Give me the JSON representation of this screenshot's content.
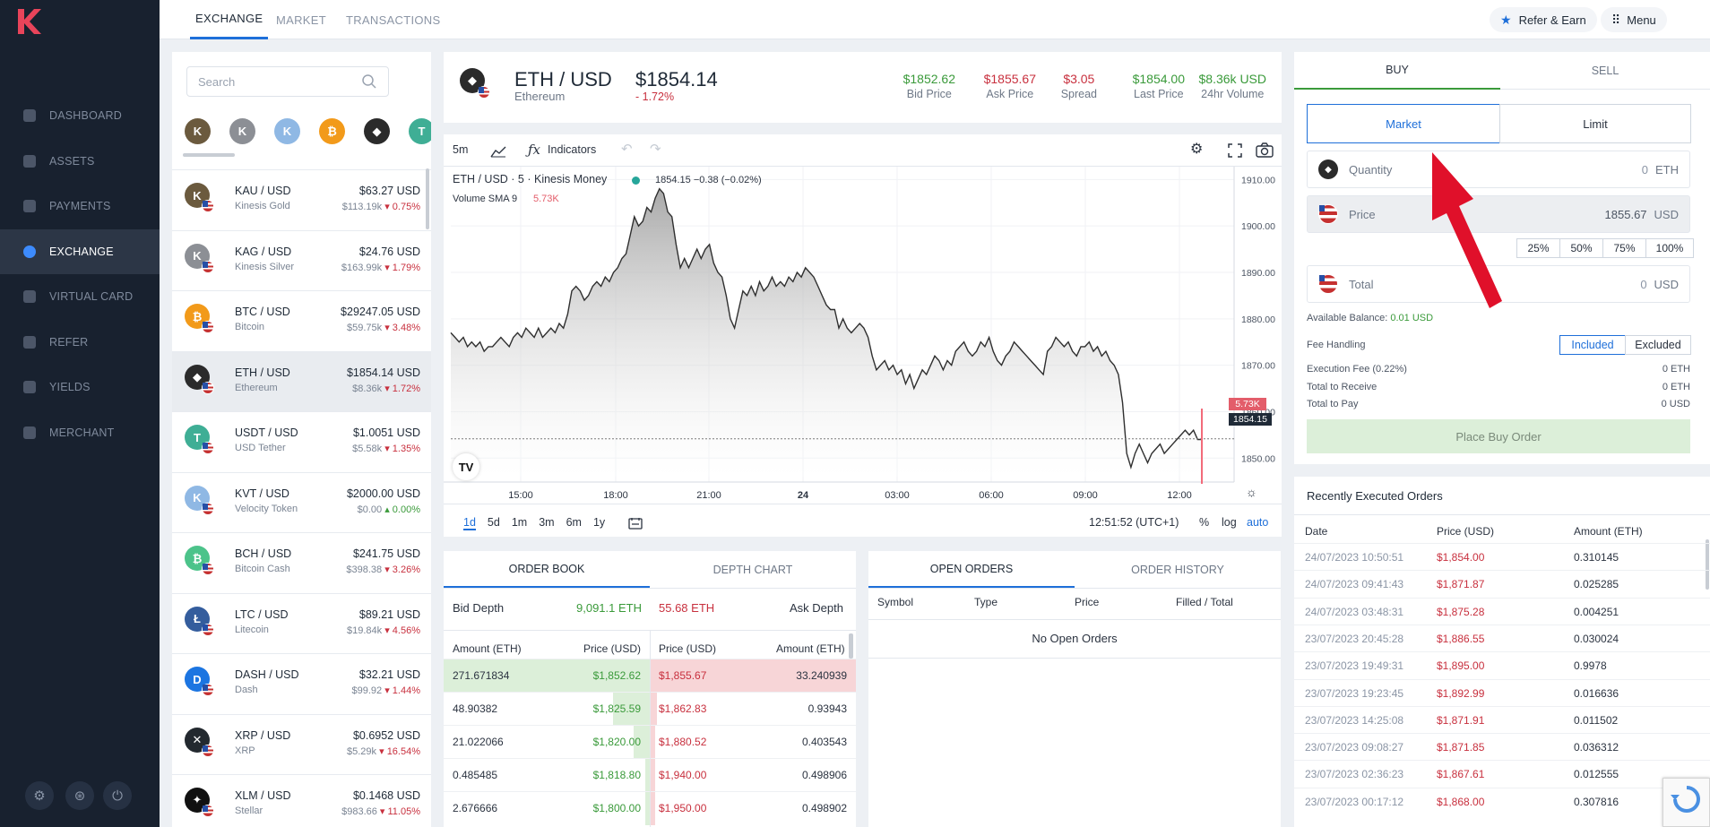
{
  "sidebar": {
    "logo_letter": "K",
    "items": [
      {
        "label": "DASHBOARD",
        "active": false
      },
      {
        "label": "ASSETS",
        "active": false
      },
      {
        "label": "PAYMENTS",
        "active": false
      },
      {
        "label": "EXCHANGE",
        "active": true
      },
      {
        "label": "VIRTUAL CARD",
        "active": false
      },
      {
        "label": "REFER",
        "active": false
      },
      {
        "label": "YIELDS",
        "active": false
      },
      {
        "label": "MERCHANT",
        "active": false
      }
    ],
    "bottom_icons": [
      "gear-icon",
      "support-icon",
      "power-icon"
    ]
  },
  "topbar": {
    "tabs": [
      "EXCHANGE",
      "MARKET",
      "TRANSACTIONS"
    ],
    "refer_label": "Refer & Earn",
    "menu_label": "Menu"
  },
  "markets": {
    "search_placeholder": "Search",
    "favorites": [
      "KAU",
      "KAG",
      "KVT",
      "BTC",
      "ETH",
      "USDT"
    ],
    "rows": [
      {
        "pair": "KAU / USD",
        "name": "Kinesis Gold",
        "price": "$63.27 USD",
        "vol": "$113.19k",
        "change": "0.75%",
        "dir": "down",
        "color": "#6b5a3e",
        "letter": "K"
      },
      {
        "pair": "KAG / USD",
        "name": "Kinesis Silver",
        "price": "$24.76 USD",
        "vol": "$163.99k",
        "change": "1.79%",
        "dir": "down",
        "color": "#8c8f95",
        "letter": "K"
      },
      {
        "pair": "BTC / USD",
        "name": "Bitcoin",
        "price": "$29247.05 USD",
        "vol": "$59.75k",
        "change": "3.48%",
        "dir": "down",
        "color": "#f29a1a",
        "letter": "₿"
      },
      {
        "pair": "ETH / USD",
        "name": "Ethereum",
        "price": "$1854.14 USD",
        "vol": "$8.36k",
        "change": "1.72%",
        "dir": "down",
        "color": "#2b2b2b",
        "letter": "◆"
      },
      {
        "pair": "USDT / USD",
        "name": "USD Tether",
        "price": "$1.0051 USD",
        "vol": "$5.58k",
        "change": "1.35%",
        "dir": "down",
        "color": "#3fae95",
        "letter": "T"
      },
      {
        "pair": "KVT / USD",
        "name": "Velocity Token",
        "price": "$2000.00 USD",
        "vol": "$0.00",
        "change": "0.00%",
        "dir": "up",
        "color": "#8fb8e4",
        "letter": "K"
      },
      {
        "pair": "BCH / USD",
        "name": "Bitcoin Cash",
        "price": "$241.75 USD",
        "vol": "$398.38",
        "change": "3.26%",
        "dir": "down",
        "color": "#4cc38a",
        "letter": "₿"
      },
      {
        "pair": "LTC / USD",
        "name": "Litecoin",
        "price": "$89.21 USD",
        "vol": "$19.84k",
        "change": "4.56%",
        "dir": "down",
        "color": "#345d9d",
        "letter": "Ł"
      },
      {
        "pair": "DASH / USD",
        "name": "Dash",
        "price": "$32.21 USD",
        "vol": "$99.92",
        "change": "1.44%",
        "dir": "down",
        "color": "#1c75e1",
        "letter": "D"
      },
      {
        "pair": "XRP / USD",
        "name": "XRP",
        "price": "$0.6952 USD",
        "vol": "$5.29k",
        "change": "16.54%",
        "dir": "down",
        "color": "#23292f",
        "letter": "✕"
      },
      {
        "pair": "XLM / USD",
        "name": "Stellar",
        "price": "$0.1468 USD",
        "vol": "$983.66",
        "change": "11.05%",
        "dir": "down",
        "color": "#111111",
        "letter": "✦"
      }
    ]
  },
  "ticker": {
    "pair": "ETH / USD",
    "name": "Ethereum",
    "price": "$1854.14",
    "change": "- 1.72%",
    "stats": [
      {
        "value": "$1852.62",
        "label": "Bid Price",
        "color": "#3a9a3a"
      },
      {
        "value": "$1855.67",
        "label": "Ask Price",
        "color": "#c8303e"
      },
      {
        "value": "$3.05",
        "label": "Spread",
        "color": "#c8303e"
      },
      {
        "value": "$1854.00",
        "label": "Last Price",
        "color": "#3a9a3a"
      },
      {
        "value": "$8.36k USD",
        "label": "24hr Volume",
        "color": "#3a9a3a"
      }
    ]
  },
  "chart": {
    "interval": "5m",
    "indicators_label": "Indicators",
    "legend_title": "ETH / USD · 5 · Kinesis Money",
    "legend_values": "1854.15 −0.38 (−0.02%)",
    "volume_label": "Volume SMA 9",
    "volume_value": "5.73K",
    "y_ticks": [
      "1910.00",
      "1900.00",
      "1890.00",
      "1880.00",
      "1870.00",
      "1860.00",
      "1850.00"
    ],
    "x_ticks": [
      "15:00",
      "18:00",
      "21:00",
      "24",
      "03:00",
      "06:00",
      "09:00",
      "12:00"
    ],
    "badge_volume": "5.73K",
    "badge_price": "1854.15",
    "ranges": [
      "1d",
      "5d",
      "1m",
      "3m",
      "6m",
      "1y"
    ],
    "time": "12:51:52 (UTC+1)",
    "opts": [
      "%",
      "log",
      "auto"
    ],
    "chart_data": {
      "type": "area",
      "ylim": [
        1846,
        1912
      ],
      "values": [
        1877,
        1876,
        1875,
        1876,
        1874,
        1875,
        1874,
        1875,
        1873,
        1874,
        1874,
        1875,
        1876,
        1875,
        1874,
        1876,
        1877,
        1876,
        1878,
        1877,
        1876,
        1878,
        1876,
        1877,
        1878,
        1877,
        1879,
        1878,
        1881,
        1886,
        1887,
        1886,
        1884,
        1885,
        1887,
        1888,
        1887,
        1889,
        1888,
        1890,
        1891,
        1893,
        1894,
        1898,
        1902,
        1900,
        1901,
        1904,
        1903,
        1906,
        1908,
        1907,
        1903,
        1902,
        1896,
        1891,
        1893,
        1891,
        1893,
        1895,
        1893,
        1895,
        1896,
        1892,
        1890,
        1889,
        1885,
        1880,
        1878,
        1882,
        1886,
        1885,
        1887,
        1885,
        1888,
        1886,
        1887,
        1889,
        1887,
        1888,
        1887,
        1889,
        1888,
        1890,
        1889,
        1891,
        1890,
        1889,
        1887,
        1885,
        1883,
        1882,
        1882,
        1878,
        1880,
        1878,
        1877,
        1878,
        1879,
        1878,
        1876,
        1872,
        1869,
        1870,
        1871,
        1869,
        1870,
        1868,
        1869,
        1866,
        1868,
        1865,
        1867,
        1869,
        1868,
        1870,
        1872,
        1871,
        1869,
        1871,
        1870,
        1873,
        1874,
        1875,
        1873,
        1872,
        1873,
        1875,
        1874,
        1876,
        1873,
        1871,
        1870,
        1872,
        1873,
        1875,
        1874,
        1873,
        1872,
        1871,
        1870,
        1869,
        1868,
        1873,
        1874,
        1876,
        1875,
        1874,
        1875,
        1873,
        1872,
        1874,
        1874,
        1875,
        1873,
        1874,
        1872,
        1873,
        1871,
        1870,
        1868,
        1862,
        1851,
        1848,
        1851,
        1853,
        1851,
        1849,
        1851,
        1852,
        1853,
        1851,
        1852,
        1853,
        1854,
        1855,
        1856,
        1855,
        1856,
        1854,
        1854
      ]
    }
  },
  "orderbook": {
    "tabs": [
      "ORDER BOOK",
      "DEPTH CHART"
    ],
    "bid_depth_label": "Bid Depth",
    "bid_depth": "9,091.1 ETH",
    "ask_depth": "55.68 ETH",
    "ask_depth_label": "Ask Depth",
    "cols": [
      "Amount (ETH)",
      "Price (USD)",
      "Price (USD)",
      "Amount (ETH)"
    ],
    "bids": [
      {
        "amount": "271.671834",
        "price": "$1,852.62",
        "depth": 1.0
      },
      {
        "amount": "48.90382",
        "price": "$1,825.59",
        "depth": 0.18
      },
      {
        "amount": "21.022066",
        "price": "$1,820.00",
        "depth": 0.08
      },
      {
        "amount": "0.485485",
        "price": "$1,818.80",
        "depth": 0.02
      },
      {
        "amount": "2.676666",
        "price": "$1,800.00",
        "depth": 0.02
      }
    ],
    "asks": [
      {
        "price": "$1,855.67",
        "amount": "33.240939",
        "depth": 1.0
      },
      {
        "price": "$1,862.83",
        "amount": "0.93943",
        "depth": 0.03
      },
      {
        "price": "$1,880.52",
        "amount": "0.403543",
        "depth": 0.02
      },
      {
        "price": "$1,940.00",
        "amount": "0.498906",
        "depth": 0.02
      },
      {
        "price": "$1,950.00",
        "amount": "0.498902",
        "depth": 0.02
      }
    ]
  },
  "openorders": {
    "tabs": [
      "OPEN ORDERS",
      "ORDER HISTORY"
    ],
    "cols": [
      "Symbol",
      "Type",
      "Price",
      "Filled / Total"
    ],
    "empty": "No Open Orders"
  },
  "trade": {
    "tabs": [
      "BUY",
      "SELL"
    ],
    "types": [
      "Market",
      "Limit"
    ],
    "quantity_label": "Quantity",
    "quantity_value": "0",
    "quantity_unit": "ETH",
    "price_label": "Price",
    "price_value": "1855.67",
    "price_unit": "USD",
    "pcts": [
      "25%",
      "50%",
      "75%",
      "100%"
    ],
    "total_label": "Total",
    "total_value": "0",
    "total_unit": "USD",
    "balance_label": "Available Balance:",
    "balance_value": "0.01 USD",
    "fee_label": "Fee Handling",
    "fee_opts": [
      "Included",
      "Excluded"
    ],
    "rows": [
      {
        "label": "Execution Fee (0.22%)",
        "value": "0 ETH"
      },
      {
        "label": "Total to Receive",
        "value": "0 ETH"
      },
      {
        "label": "Total to Pay",
        "value": "0 USD"
      }
    ],
    "place_label": "Place Buy Order"
  },
  "recent": {
    "title": "Recently Executed Orders",
    "cols": [
      "Date",
      "Price (USD)",
      "Amount (ETH)"
    ],
    "rows": [
      {
        "date": "24/07/2023 10:50:51",
        "price": "$1,854.00",
        "amount": "0.310145"
      },
      {
        "date": "24/07/2023 09:41:43",
        "price": "$1,871.87",
        "amount": "0.025285"
      },
      {
        "date": "24/07/2023 03:48:31",
        "price": "$1,875.28",
        "amount": "0.004251"
      },
      {
        "date": "23/07/2023 20:45:28",
        "price": "$1,886.55",
        "amount": "0.030024"
      },
      {
        "date": "23/07/2023 19:49:31",
        "price": "$1,895.00",
        "amount": "0.9978"
      },
      {
        "date": "23/07/2023 19:23:45",
        "price": "$1,892.99",
        "amount": "0.016636"
      },
      {
        "date": "23/07/2023 14:25:08",
        "price": "$1,871.91",
        "amount": "0.011502"
      },
      {
        "date": "23/07/2023 09:08:27",
        "price": "$1,871.85",
        "amount": "0.036312"
      },
      {
        "date": "23/07/2023 02:36:23",
        "price": "$1,867.61",
        "amount": "0.012555"
      },
      {
        "date": "23/07/2023 00:17:12",
        "price": "$1,868.00",
        "amount": "0.307816"
      }
    ]
  },
  "colors": {
    "accent": "#1e6fd9",
    "buy": "#3a9a3a",
    "sell": "#c8303e",
    "sidebar": "#18212f",
    "arrow": "#e0102a"
  }
}
